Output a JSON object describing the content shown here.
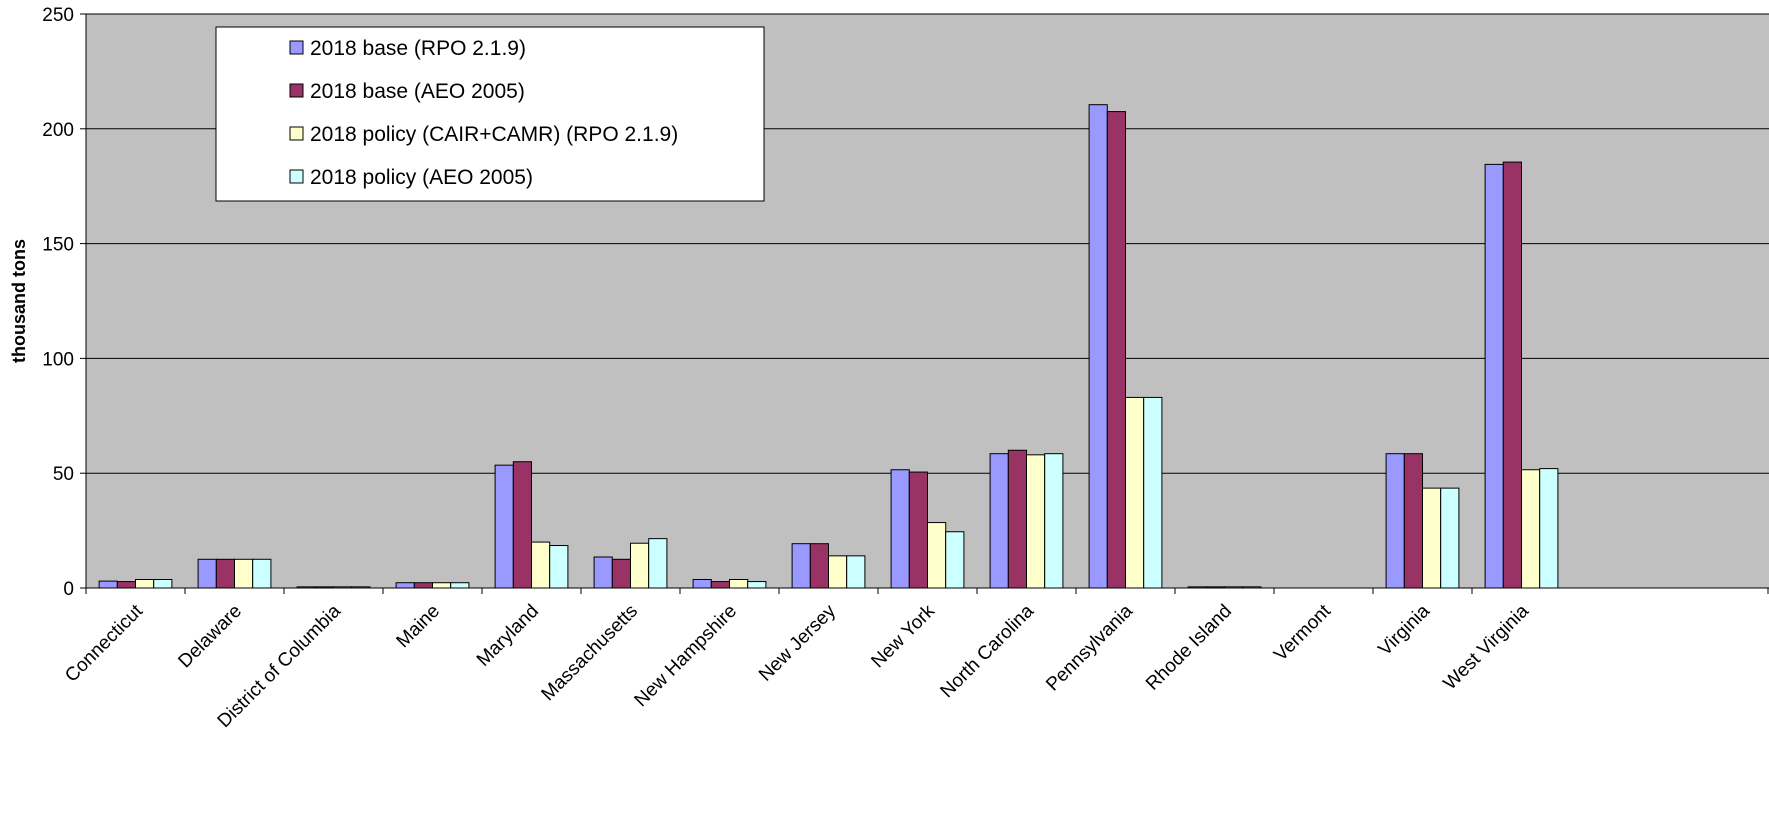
{
  "chart_data": {
    "type": "bar",
    "title": "",
    "xlabel": "",
    "ylabel": "thousand tons",
    "ylim": [
      0,
      250
    ],
    "yticks": [
      0,
      50,
      100,
      150,
      200,
      250
    ],
    "grid": true,
    "legend_position": "top-left",
    "categories": [
      "Connecticut",
      "Delaware",
      "District of Columbia",
      "Maine",
      "Maryland",
      "Massachusetts",
      "New Hampshire",
      "New Jersey",
      "New York",
      "North Carolina",
      "Pennsylvania",
      "Rhode Island",
      "Vermont",
      "Virginia",
      "West Virginia"
    ],
    "series": [
      {
        "name": "2018 base (RPO 2.1.9)",
        "color": "#9999ff",
        "values": [
          3,
          12.5,
          0.5,
          2.3,
          53.5,
          13.5,
          3.7,
          19.3,
          51.5,
          58.5,
          210.5,
          0.5,
          0,
          58.5,
          184.5
        ]
      },
      {
        "name": "2018 base (AEO 2005)",
        "color": "#993366",
        "values": [
          2.8,
          12.5,
          0.5,
          2.3,
          55,
          12.5,
          2.8,
          19.3,
          50.5,
          60,
          207.5,
          0.5,
          0,
          58.5,
          185.5
        ]
      },
      {
        "name": "2018 policy (CAIR+CAMR) (RPO 2.1.9)",
        "color": "#ffffcc",
        "values": [
          3.7,
          12.5,
          0.5,
          2.3,
          20,
          19.5,
          3.7,
          14,
          28.5,
          58,
          83,
          0.5,
          0,
          43.5,
          51.5
        ]
      },
      {
        "name": "2018 policy (AEO 2005)",
        "color": "#ccffff",
        "values": [
          3.7,
          12.5,
          0.5,
          2.3,
          18.5,
          21.5,
          2.8,
          14,
          24.5,
          58.5,
          83,
          0.5,
          0,
          43.5,
          52
        ]
      }
    ]
  },
  "colors": {
    "plot_background": "#c0c0c0",
    "gridline": "#000000",
    "bar_outline": "#000000"
  }
}
